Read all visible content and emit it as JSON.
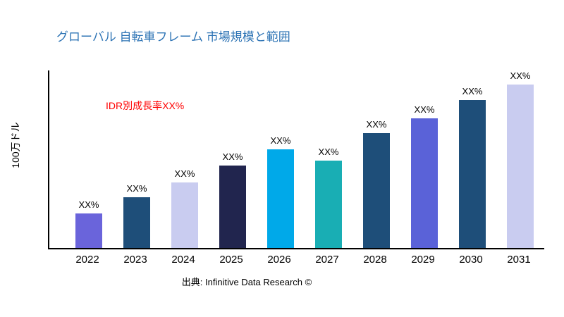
{
  "page": {
    "title": "グローバル 自転車フレーム 市場規模と範囲",
    "annotation": "IDR別成長率XX%",
    "source": "出典: Infinitive Data Research ©",
    "title_color": "#2E74B5",
    "annotation_color": "#FF0000"
  },
  "chart_data": {
    "type": "bar",
    "title": "グローバル 自転車フレーム 市場規模と範囲",
    "xlabel": "",
    "ylabel": "100万ドル",
    "categories": [
      "2022",
      "2023",
      "2024",
      "2025",
      "2026",
      "2027",
      "2028",
      "2029",
      "2030",
      "2031"
    ],
    "values": [
      21,
      31,
      40,
      50,
      60,
      53,
      70,
      79,
      90,
      100
    ],
    "bar_labels": [
      "XX%",
      "XX%",
      "XX%",
      "XX%",
      "XX%",
      "XX%",
      "XX%",
      "XX%",
      "XX%",
      "XX%"
    ],
    "colors": [
      "#6A64DB",
      "#1E4E79",
      "#C9CCF0",
      "#21254E",
      "#00A9E9",
      "#19AEB4",
      "#1E4E79",
      "#5A62D8",
      "#1E4E79",
      "#C9CCF0"
    ],
    "ylim": [
      0,
      108
    ],
    "grid": false,
    "legend": false,
    "annotation": "IDR別成長率XX%"
  }
}
